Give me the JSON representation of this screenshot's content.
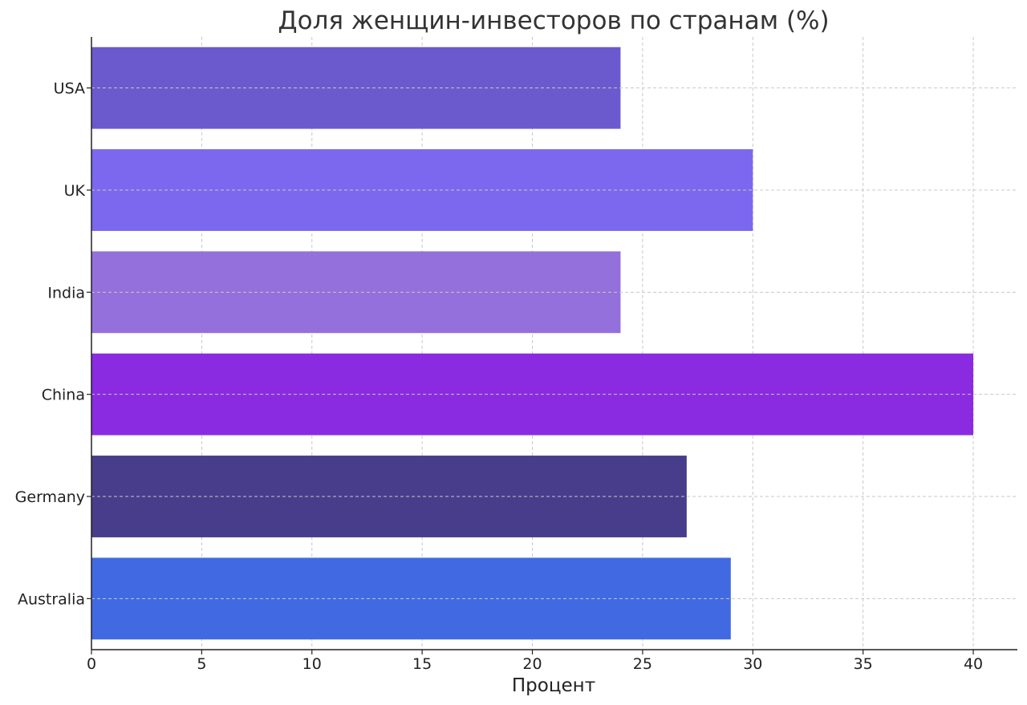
{
  "chart_data": {
    "type": "bar",
    "orientation": "horizontal",
    "title": "Доля женщин-инвесторов по странам (%)",
    "xlabel": "Процент",
    "ylabel": "",
    "xlim": [
      0,
      42
    ],
    "xticks": [
      0,
      5,
      10,
      15,
      20,
      25,
      30,
      35,
      40
    ],
    "grid": true,
    "categories": [
      "USA",
      "UK",
      "India",
      "China",
      "Germany",
      "Australia"
    ],
    "values": [
      24,
      30,
      24,
      40,
      27,
      29
    ],
    "colors": [
      "#6a5acd",
      "#7b68ee",
      "#9370db",
      "#8a2be2",
      "#483d8b",
      "#4169e1"
    ]
  }
}
